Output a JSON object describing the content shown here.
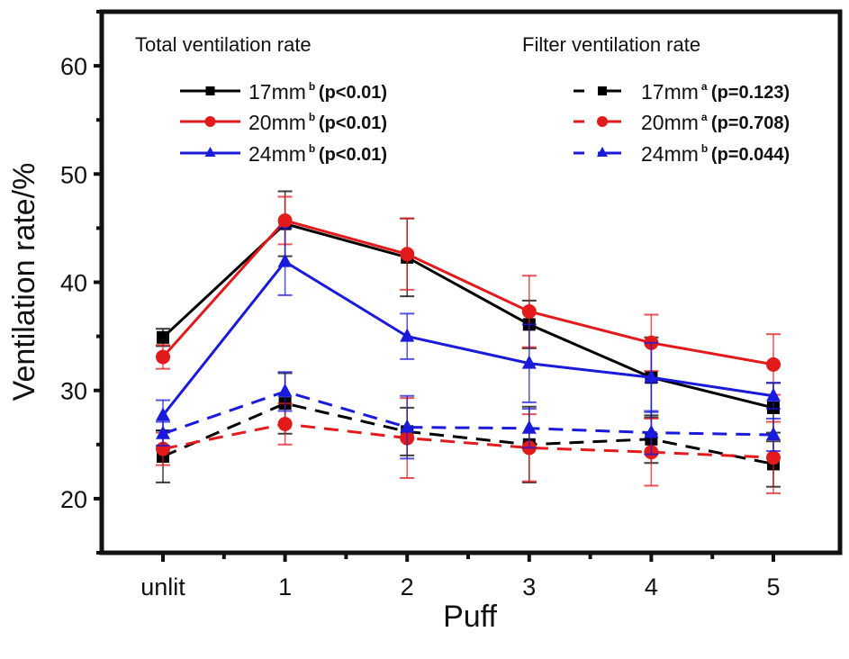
{
  "chart_data": {
    "type": "line",
    "title": "",
    "xlabel": "Puff",
    "ylabel": "Ventilation rate/%",
    "categories": [
      "unlit",
      "1",
      "2",
      "3",
      "4",
      "5"
    ],
    "yticks": [
      20,
      30,
      40,
      50,
      60
    ],
    "ylim": [
      15,
      65
    ],
    "grid": false,
    "legend_groups": [
      {
        "title": "Total ventilation rate",
        "placement": "top-left"
      },
      {
        "title": "Filter ventilation rate",
        "placement": "top-right"
      }
    ],
    "series": [
      {
        "name": "17mm",
        "superscript": "b",
        "pvalue": "(p<0.01)",
        "group": 0,
        "color": "#000000",
        "marker": "square",
        "dash": "solid",
        "values": [
          34.9,
          45.4,
          42.3,
          36.1,
          31.2,
          28.4
        ],
        "errors": [
          0.8,
          3.0,
          3.6,
          2.2,
          3.7,
          2.3
        ]
      },
      {
        "name": "20mm",
        "superscript": "b",
        "pvalue": "(p<0.01)",
        "group": 0,
        "color": "#e31a1c",
        "marker": "circle",
        "dash": "solid",
        "values": [
          33.1,
          45.7,
          42.6,
          37.3,
          34.4,
          32.4
        ],
        "errors": [
          1.1,
          2.2,
          3.3,
          3.3,
          2.6,
          2.8
        ]
      },
      {
        "name": "24mm",
        "superscript": "b",
        "pvalue": "(p<0.01)",
        "group": 0,
        "color": "#1a1adb",
        "marker": "triangle",
        "dash": "solid",
        "values": [
          27.7,
          41.9,
          35.0,
          32.5,
          31.2,
          29.5
        ],
        "errors": [
          1.4,
          3.1,
          2.1,
          3.6,
          3.2,
          1.2
        ]
      },
      {
        "name": "17mm",
        "superscript": "a",
        "pvalue": "(p=0.123)",
        "group": 1,
        "color": "#000000",
        "marker": "square",
        "dash": "dashed",
        "values": [
          23.9,
          28.8,
          26.2,
          25.0,
          25.5,
          23.2
        ],
        "errors": [
          2.4,
          2.8,
          2.2,
          3.5,
          2.2,
          2.1
        ]
      },
      {
        "name": "20mm",
        "superscript": "a",
        "pvalue": "(p=0.708)",
        "group": 1,
        "color": "#e31a1c",
        "marker": "circle",
        "dash": "dashed",
        "values": [
          24.6,
          26.9,
          25.6,
          24.7,
          24.3,
          23.8
        ],
        "errors": [
          1.5,
          1.9,
          3.7,
          3.1,
          3.1,
          3.3
        ]
      },
      {
        "name": "24mm",
        "superscript": "b",
        "pvalue": "(p=0.044)",
        "group": 1,
        "color": "#1a1adb",
        "marker": "triangle",
        "dash": "dashed",
        "values": [
          26.0,
          29.9,
          26.6,
          26.5,
          26.1,
          25.9
        ],
        "errors": [
          1.1,
          1.8,
          2.9,
          1.8,
          2.0,
          1.5
        ]
      }
    ]
  }
}
